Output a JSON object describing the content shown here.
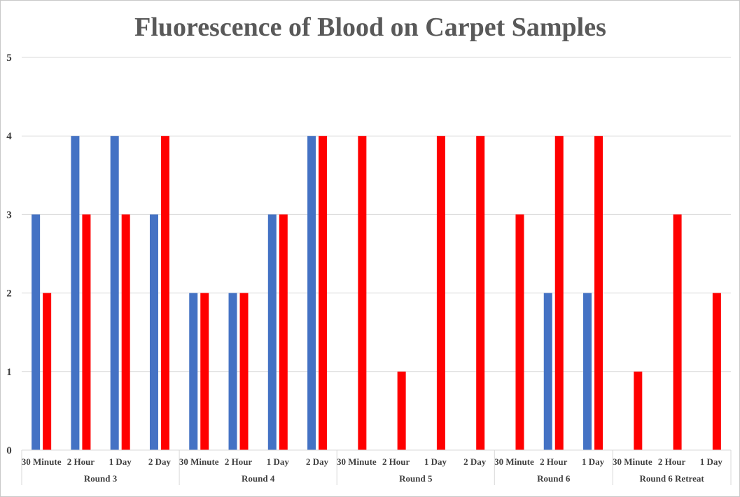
{
  "chart_data": {
    "type": "bar",
    "title": "Fluorescence of Blood on Carpet Samples",
    "xlabel": "",
    "ylabel": "",
    "ylim": [
      0,
      5
    ],
    "yticks": [
      "0",
      "1",
      "2",
      "3",
      "4",
      "5"
    ],
    "grid": true,
    "legend": "none",
    "groups": [
      {
        "label": "Round 3",
        "categories": [
          "30 Minute",
          "2 Hour",
          "1 Day",
          "2 Day"
        ]
      },
      {
        "label": "Round 4",
        "categories": [
          "30 Minute",
          "2 Hour",
          "1 Day",
          "2 Day"
        ]
      },
      {
        "label": "Round 5",
        "categories": [
          "30 Minute",
          "2 Hour",
          "1 Day",
          "2 Day"
        ]
      },
      {
        "label": "Round 6",
        "categories": [
          "30 Minute",
          "2 Hour",
          "1 Day"
        ]
      },
      {
        "label": "Round 6 Retreat",
        "categories": [
          "30 Minute",
          "2 Hour",
          "1 Day"
        ]
      }
    ],
    "series": [
      {
        "color": "#4472c4",
        "values": [
          3,
          4,
          4,
          3,
          2,
          2,
          3,
          4,
          0,
          0,
          0,
          0,
          0,
          2,
          2,
          0,
          0,
          0
        ]
      },
      {
        "color": "#ff0000",
        "values": [
          2,
          3,
          3,
          4,
          2,
          2,
          3,
          4,
          4,
          1,
          4,
          4,
          3,
          4,
          4,
          1,
          3,
          2
        ]
      }
    ]
  }
}
